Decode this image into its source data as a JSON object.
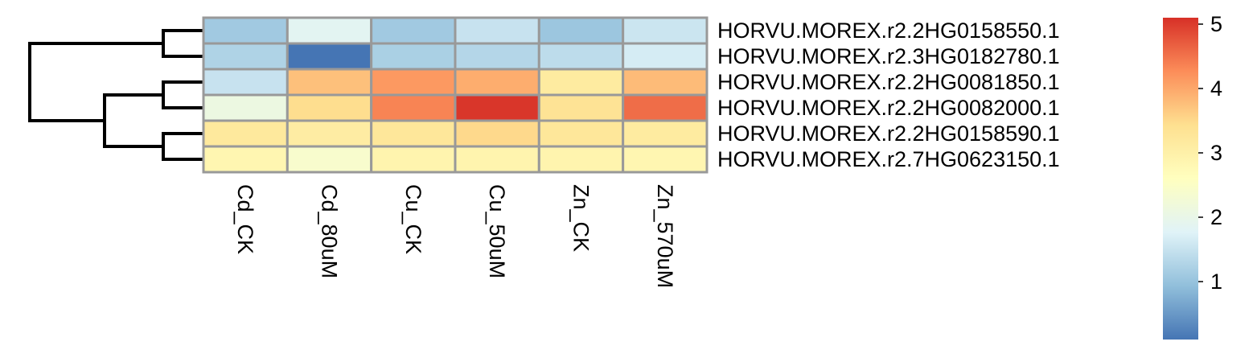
{
  "chart_data": {
    "type": "heatmap",
    "title": "",
    "xlabel": "",
    "ylabel": "",
    "columns": [
      "Cd_CK",
      "Cd_80uM",
      "Cu_CK",
      "Cu_50uM",
      "Zn_CK",
      "Zn_570uM"
    ],
    "rows": [
      "HORVU.MOREX.r2.2HG0158550.1",
      "HORVU.MOREX.r2.3HG0182780.1",
      "HORVU.MOREX.r2.2HG0081850.1",
      "HORVU.MOREX.r2.2HG0082000.1",
      "HORVU.MOREX.r2.2HG0158590.1",
      "HORVU.MOREX.r2.7HG0623150.1"
    ],
    "values": [
      [
        1.1,
        1.85,
        1.1,
        1.5,
        1.05,
        1.55
      ],
      [
        1.25,
        0.1,
        1.2,
        1.3,
        1.4,
        1.65
      ],
      [
        1.5,
        3.75,
        4.15,
        3.95,
        3.15,
        3.8
      ],
      [
        2.1,
        3.45,
        4.35,
        5.05,
        3.35,
        4.55
      ],
      [
        3.2,
        3.1,
        3.25,
        3.5,
        3.25,
        3.15
      ],
      [
        2.85,
        2.4,
        2.9,
        2.9,
        2.9,
        2.85
      ]
    ],
    "color_scale": {
      "min": 0.1,
      "max": 5.1,
      "ticks": [
        1,
        2,
        3,
        4,
        5
      ],
      "colors": [
        "#4575b4",
        "#91bfdb",
        "#e0f3f8",
        "#ffffbf",
        "#fee090",
        "#fc8d59",
        "#d73027"
      ]
    },
    "row_dendrogram": true,
    "cell_border_color": "#999999",
    "legend_position": "right"
  }
}
